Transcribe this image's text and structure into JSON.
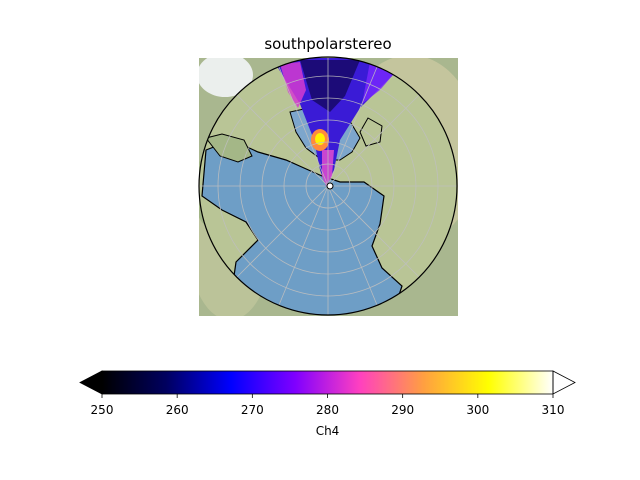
{
  "chart_data": {
    "type": "heatmap",
    "title": "southpolarstereo",
    "colorbar": {
      "label": "Ch4",
      "colormap": "gnuplot2",
      "range": [
        250,
        310
      ],
      "ticks": [
        250,
        260,
        270,
        280,
        290,
        300,
        310
      ],
      "tick_labels": [
        "250",
        "260",
        "270",
        "280",
        "290",
        "300",
        "310"
      ],
      "extend": "both",
      "orientation": "horizontal",
      "stops": [
        "#000000",
        "#000060",
        "#0000ff",
        "#8000ff",
        "#ff40c0",
        "#ffa040",
        "#ffff00",
        "#ffffff"
      ]
    },
    "map": {
      "projection": "southpolarstereo",
      "boundary": "circle",
      "gridlines": true,
      "coastlines": true,
      "background": "natural-earth",
      "ocean_color": "#6e9ec6",
      "land_color": "#b7c498"
    }
  }
}
